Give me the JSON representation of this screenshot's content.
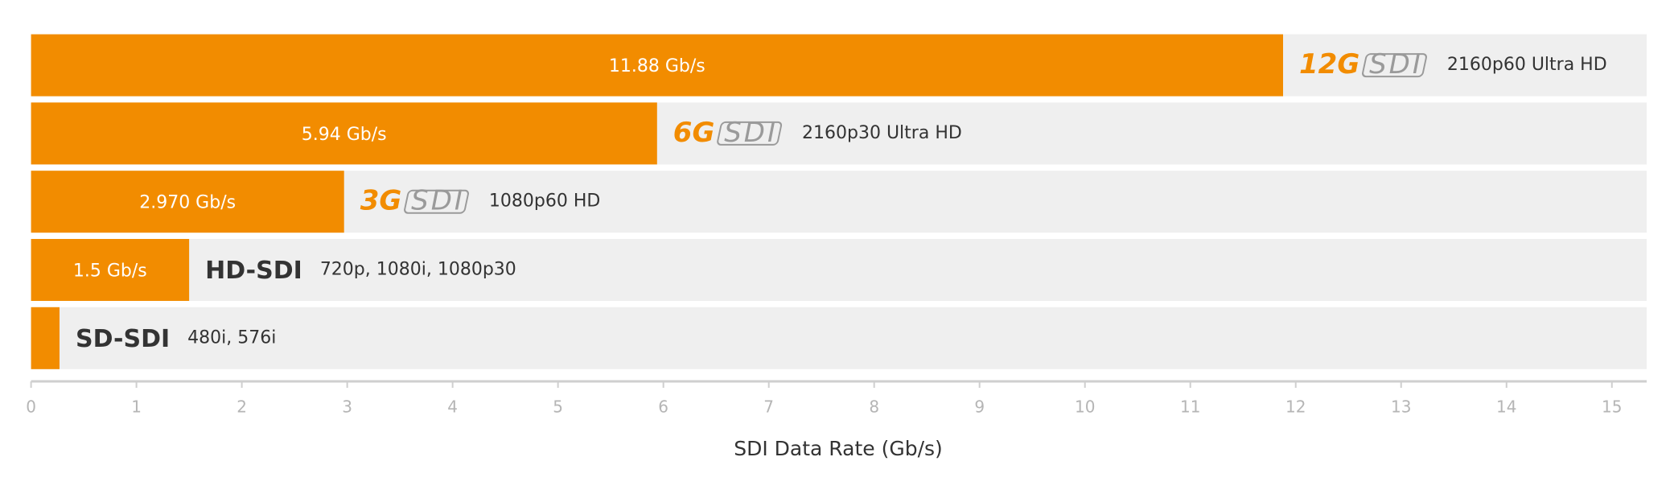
{
  "chart_data": {
    "type": "hbar",
    "categories": [
      "12G SDI",
      "6G SDI",
      "3G SDI",
      "HD-SDI",
      "SD-SDI"
    ],
    "values": [
      11.88,
      5.94,
      2.97,
      1.5,
      0.27
    ],
    "value_labels": [
      "11.88 Gb/s",
      "5.94 Gb/s",
      "2.970 Gb/s",
      "1.5 Gb/s",
      null
    ],
    "annotations": [
      "2160p60 Ultra HD",
      "2160p30 Ultra HD",
      "1080p60 HD",
      "720p, 1080i, 1080p30",
      "480i, 576i"
    ],
    "color": "#f28c00",
    "xlim": [
      0,
      15.33
    ],
    "xticks": [
      0,
      1,
      2,
      3,
      4,
      5,
      6,
      7,
      8,
      9,
      10,
      11,
      12,
      13,
      14,
      15
    ],
    "xlabel": "SDI Data Rate (Gb/s)",
    "grid": false
  }
}
